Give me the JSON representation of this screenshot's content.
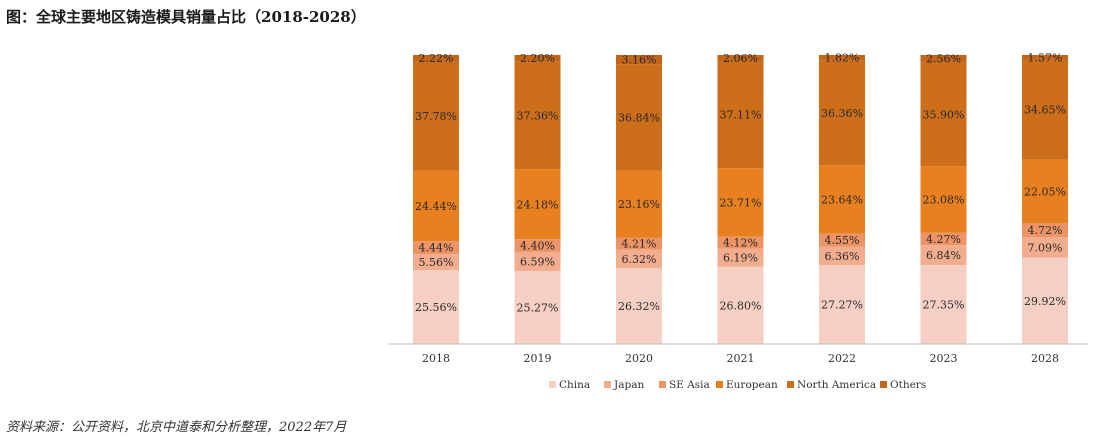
{
  "figure": {
    "title": "图：全球主要地区铸造模具销量占比（2018-2028）",
    "source": "资料来源：公开资料，北京中道泰和分析整理，2022年7月"
  },
  "chart_data": {
    "type": "bar",
    "stacked": true,
    "categories": [
      "2018",
      "2019",
      "2020",
      "2021",
      "2022",
      "2023",
      "2028"
    ],
    "series": [
      {
        "name": "China",
        "color": "#f6cfc4",
        "values": [
          25.56,
          25.27,
          26.32,
          26.8,
          27.27,
          27.35,
          29.92
        ],
        "labels": [
          "25.56%",
          "25.27%",
          "26.32%",
          "26.80%",
          "27.27%",
          "27.35%",
          "29.92%"
        ]
      },
      {
        "name": "Japan",
        "color": "#f2ad8f",
        "values": [
          5.56,
          6.59,
          6.32,
          6.19,
          6.36,
          6.84,
          7.09
        ],
        "labels": [
          "5.56%",
          "6.59%",
          "6.32%",
          "6.19%",
          "6.36%",
          "6.84%",
          "7.09%"
        ]
      },
      {
        "name": "SE Asia",
        "color": "#ec9466",
        "values": [
          4.44,
          4.4,
          4.21,
          4.12,
          4.55,
          4.27,
          4.72
        ],
        "labels": [
          "4.44%",
          "4.40%",
          "4.21%",
          "4.12%",
          "4.55%",
          "4.27%",
          "4.72%"
        ]
      },
      {
        "name": "European",
        "color": "#e8801f",
        "values": [
          24.44,
          24.18,
          23.16,
          23.71,
          23.64,
          23.08,
          22.05
        ],
        "labels": [
          "24.44%",
          "24.18%",
          "23.16%",
          "23.71%",
          "23.64%",
          "23.08%",
          "22.05%"
        ]
      },
      {
        "name": "North America",
        "color": "#cd6e1b",
        "values": [
          37.78,
          37.36,
          36.84,
          37.11,
          36.36,
          35.9,
          34.65
        ],
        "labels": [
          "37.78%",
          "37.36%",
          "36.84%",
          "37.11%",
          "36.36%",
          "35.90%",
          "34.65%"
        ]
      },
      {
        "name": "Others",
        "color": "#c3661c",
        "values": [
          2.22,
          2.2,
          3.16,
          2.06,
          1.82,
          2.56,
          1.57
        ],
        "labels": [
          "2.22%",
          "2.20%",
          "3.16%",
          "2.06%",
          "1.82%",
          "2.56%",
          "1.57%"
        ]
      }
    ],
    "ylim": [
      0,
      100
    ],
    "grid": false,
    "legend_position": "bottom"
  }
}
